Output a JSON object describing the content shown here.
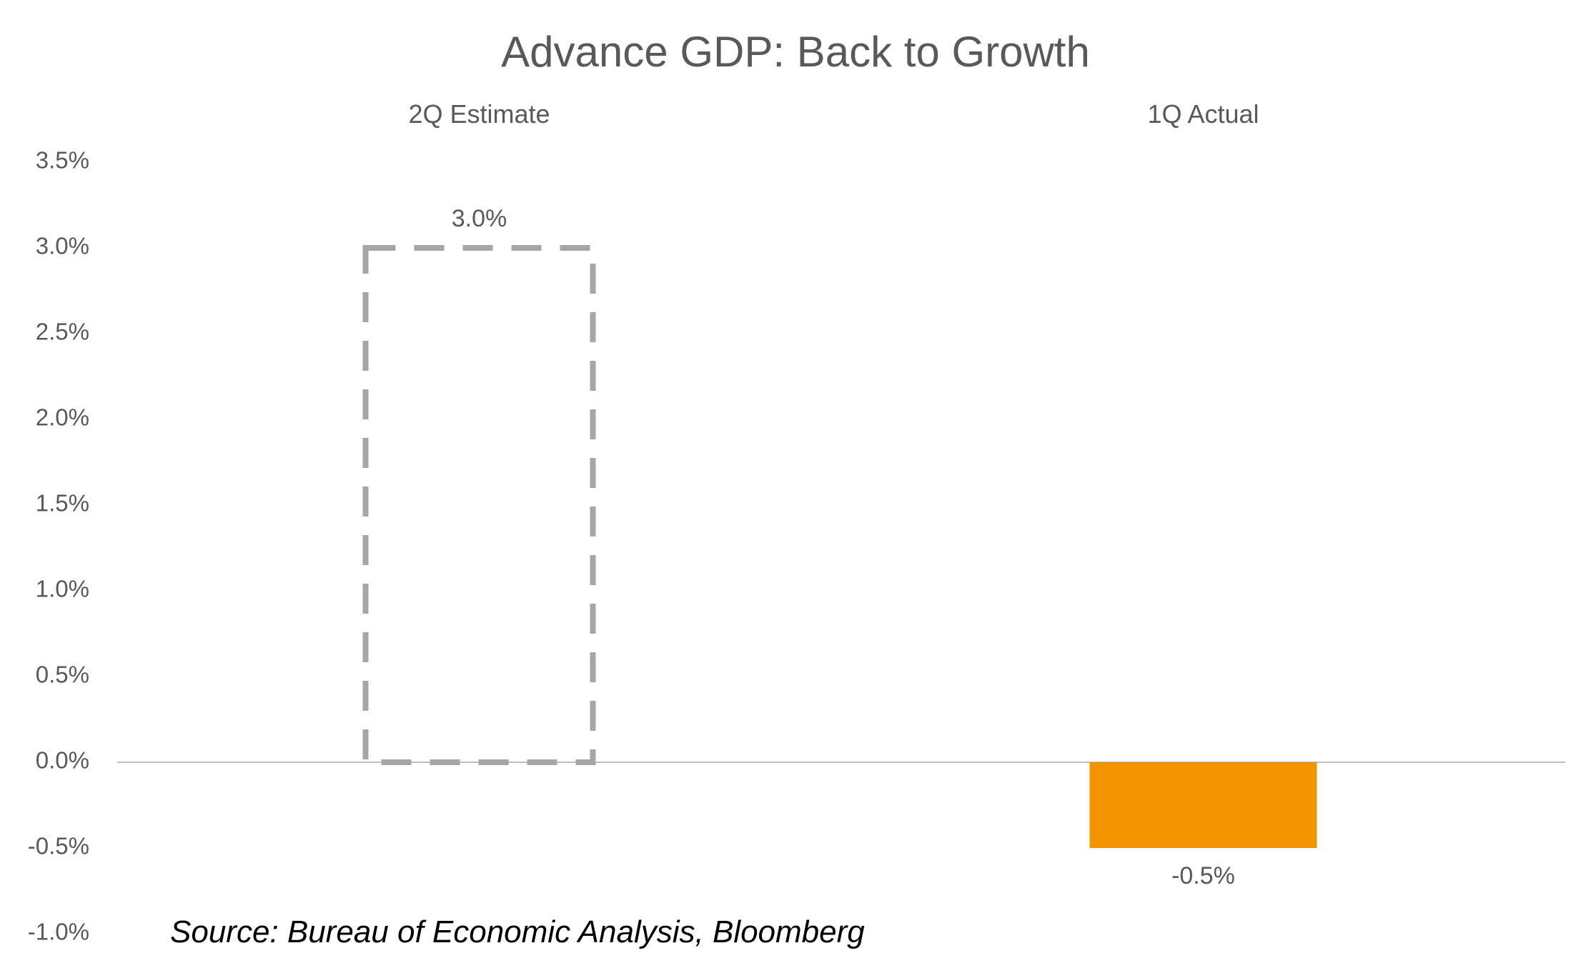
{
  "chart_data": {
    "type": "bar",
    "title": "Advance GDP: Back to Growth",
    "categories": [
      "2Q Estimate",
      "1Q Actual"
    ],
    "values": [
      3.0,
      -0.5
    ],
    "data_labels": [
      "3.0%",
      "-0.5%"
    ],
    "bar_styles": [
      "dashed-outline",
      "solid"
    ],
    "colors": {
      "estimate_outline": "#a6a6a6",
      "actual_fill": "#f29400",
      "zero_line": "#bfbfbf",
      "text": "#595959"
    },
    "ylim": [
      -1.0,
      3.5
    ],
    "yticks": [
      3.5,
      3.0,
      2.5,
      2.0,
      1.5,
      1.0,
      0.5,
      0.0,
      -0.5,
      -1.0
    ],
    "ytick_labels": [
      "3.5%",
      "3.0%",
      "2.5%",
      "2.0%",
      "1.5%",
      "1.0%",
      "0.5%",
      "0.0%",
      "-0.5%",
      "-1.0%"
    ],
    "category_labels_position": "top",
    "grid": false,
    "legend": "none",
    "xlabel": "",
    "ylabel": ""
  },
  "source": "Source: Bureau of Economic Analysis, Bloomberg"
}
